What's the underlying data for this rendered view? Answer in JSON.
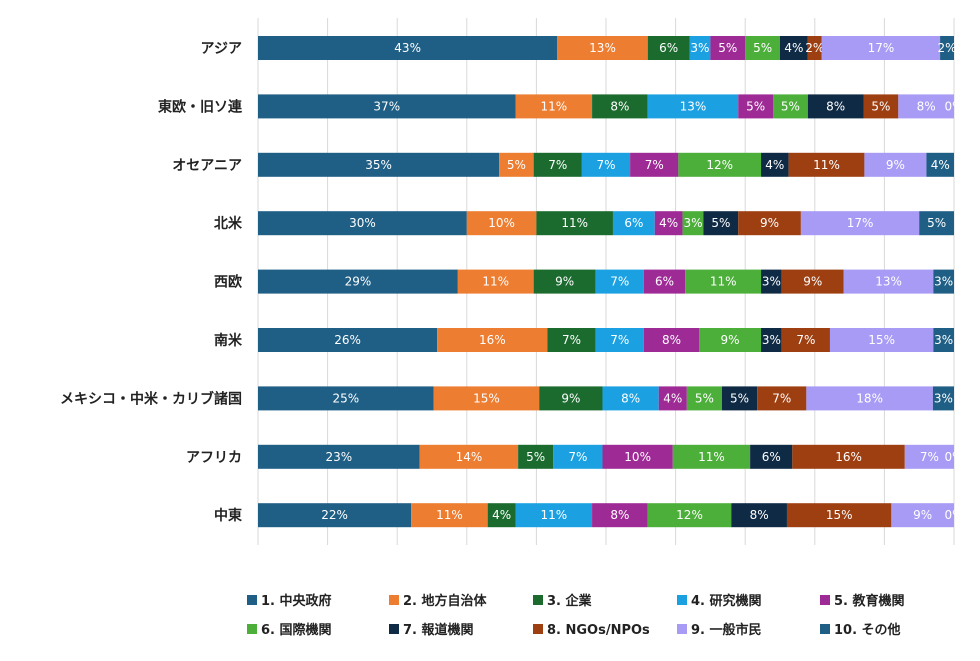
{
  "chart_data": {
    "type": "bar",
    "orientation": "horizontal",
    "stacked": "percent",
    "title": "",
    "xlabel": "",
    "ylabel": "",
    "xlim": [
      0,
      100
    ],
    "grid": true,
    "legend_position": "bottom",
    "categories": [
      "アジア",
      "東欧・旧ソ連",
      "オセアニア",
      "北米",
      "西欧",
      "南米",
      "メキシコ・中米・カリブ諸国",
      "アフリカ",
      "中東"
    ],
    "series": [
      {
        "name": "1. 中央政府",
        "color": "#1f5f86",
        "label_color": "#ffffff",
        "values": [
          43,
          37,
          35,
          30,
          29,
          26,
          25,
          23,
          22
        ]
      },
      {
        "name": "2. 地方自治体",
        "color": "#ed7d31",
        "label_color": "#ffffff",
        "values": [
          13,
          11,
          5,
          10,
          11,
          16,
          15,
          14,
          11
        ]
      },
      {
        "name": "3. 企業",
        "color": "#1b6b2f",
        "label_color": "#ffffff",
        "values": [
          6,
          8,
          7,
          11,
          9,
          7,
          9,
          5,
          4
        ]
      },
      {
        "name": "4. 研究機関",
        "color": "#1ba1e2",
        "label_color": "#ffffff",
        "values": [
          3,
          13,
          7,
          6,
          7,
          7,
          8,
          7,
          11
        ]
      },
      {
        "name": "5. 教育機関",
        "color": "#9e2a96",
        "label_color": "#ffffff",
        "values": [
          5,
          5,
          7,
          4,
          6,
          8,
          4,
          10,
          8
        ]
      },
      {
        "name": "6. 国際機関",
        "color": "#4caf3a",
        "label_color": "#ffffff",
        "values": [
          5,
          5,
          12,
          3,
          11,
          9,
          5,
          11,
          12
        ]
      },
      {
        "name": "7. 報道機関",
        "color": "#0f2a44",
        "label_color": "#ffffff",
        "values": [
          4,
          8,
          4,
          5,
          3,
          3,
          5,
          6,
          8
        ]
      },
      {
        "name": "8. NGOs/NPOs",
        "color": "#9e3f12",
        "label_color": "#ffffff",
        "values": [
          2,
          5,
          11,
          9,
          9,
          7,
          7,
          16,
          15
        ]
      },
      {
        "name": "9. 一般市民",
        "color": "#a79bf5",
        "label_color": "#ffffff",
        "values": [
          17,
          8,
          9,
          17,
          13,
          15,
          18,
          7,
          9
        ]
      },
      {
        "name": "10. その他",
        "color": "#1f5f86",
        "label_color": "#ffffff",
        "values": [
          2,
          0,
          4,
          5,
          3,
          3,
          3,
          0,
          0
        ]
      }
    ]
  }
}
